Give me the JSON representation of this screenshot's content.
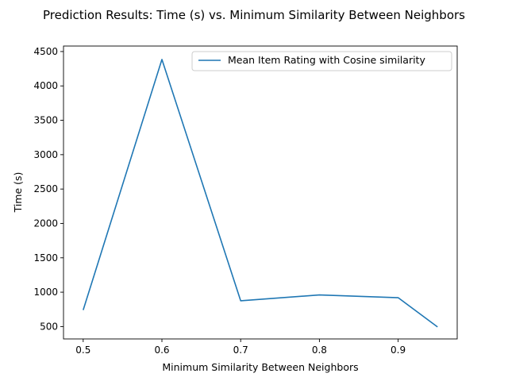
{
  "chart_data": {
    "type": "line",
    "title": "Prediction Results: Time (s) vs. Minimum Similarity Between Neighbors",
    "xlabel": "Minimum Similarity Between Neighbors",
    "ylabel": "Time (s)",
    "xlim": [
      0.475,
      0.975
    ],
    "ylim": [
      320,
      4580
    ],
    "xticks": [
      0.5,
      0.6,
      0.7,
      0.8,
      0.9
    ],
    "xtick_labels": [
      "0.5",
      "0.6",
      "0.7",
      "0.8",
      "0.9"
    ],
    "yticks": [
      500,
      1000,
      1500,
      2000,
      2500,
      3000,
      3500,
      4000,
      4500
    ],
    "ytick_labels": [
      "500",
      "1000",
      "1500",
      "2000",
      "2500",
      "3000",
      "3500",
      "4000",
      "4500"
    ],
    "grid": false,
    "legend_position": "top-right",
    "series": [
      {
        "name": "Mean Item Rating with Cosine similarity",
        "color": "#1f77b4",
        "x": [
          0.5,
          0.6,
          0.7,
          0.8,
          0.9,
          0.95
        ],
        "y": [
          740,
          4385,
          875,
          960,
          920,
          495
        ]
      }
    ]
  }
}
